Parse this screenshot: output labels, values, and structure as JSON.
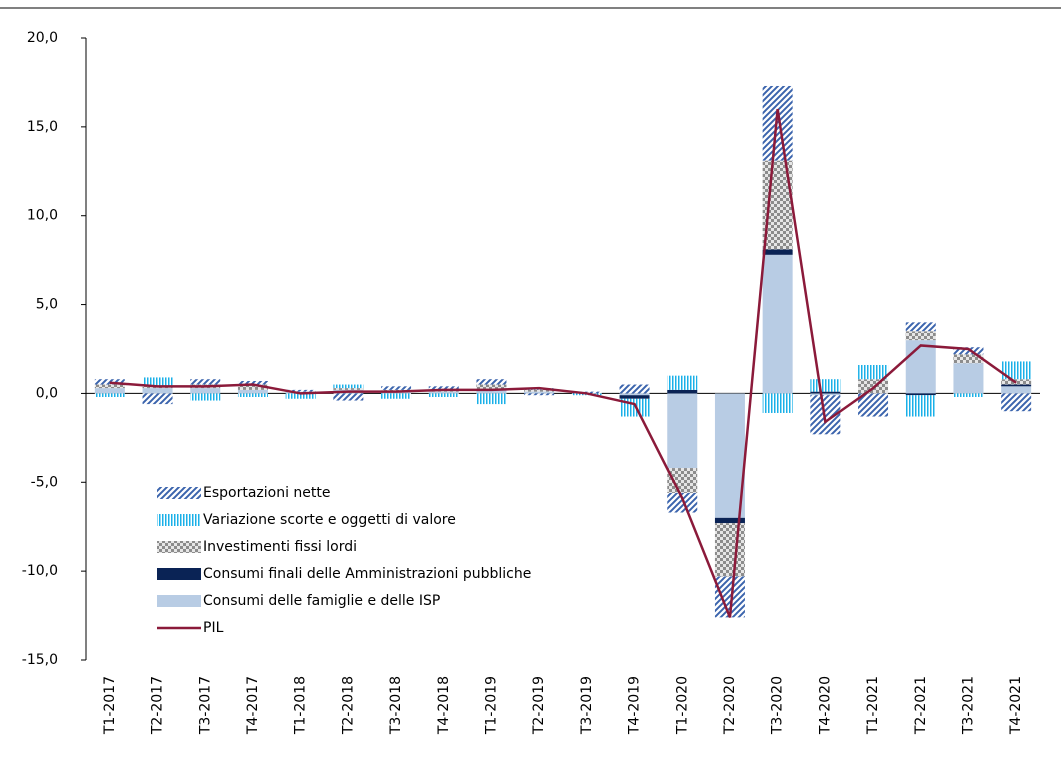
{
  "chart_data": {
    "type": "bar",
    "categories": [
      "T1-2017",
      "T2-2017",
      "T3-2017",
      "T4-2017",
      "T1-2018",
      "T2-2018",
      "T3-2018",
      "T4-2018",
      "T1-2019",
      "T2-2019",
      "T3-2019",
      "T4-2019",
      "T1-2020",
      "T2-2020",
      "T3-2020",
      "T4-2020",
      "T1-2021",
      "T2-2021",
      "T3-2021",
      "T4-2021"
    ],
    "series": [
      {
        "name": "Esportazioni nette",
        "color": "#3b64ad",
        "pattern": "diagonal",
        "values": [
          0.3,
          -0.6,
          0.3,
          0.2,
          0.1,
          -0.4,
          0.2,
          0.2,
          0.3,
          -0.1,
          0.1,
          0.5,
          -1.1,
          -2.3,
          4.2,
          -2.2,
          -1.3,
          0.5,
          0.4,
          -1.0
        ]
      },
      {
        "name": "Variazione scorte e oggetti di valore",
        "color": "#1ab0e8",
        "pattern": "vertical",
        "values": [
          -0.2,
          0.5,
          -0.4,
          -0.2,
          -0.3,
          0.2,
          -0.3,
          -0.2,
          -0.6,
          0.1,
          -0.1,
          -1.0,
          0.8,
          0.0,
          -1.1,
          0.7,
          0.8,
          -1.2,
          -0.2,
          1.0
        ]
      },
      {
        "name": "Investimenti fissi lordi",
        "color": "#8c8c8c",
        "pattern": "checker",
        "values": [
          0.2,
          0.1,
          0.2,
          0.3,
          0.0,
          0.1,
          0.1,
          0.1,
          0.3,
          0.1,
          0.0,
          0.0,
          -1.4,
          -3.0,
          5.0,
          0.0,
          0.8,
          0.5,
          0.5,
          0.3
        ]
      },
      {
        "name": "Consumi finali delle Amministrazioni pubbliche",
        "color": "#0a2355",
        "pattern": "solid",
        "values": [
          0.0,
          0.0,
          0.0,
          0.0,
          0.0,
          0.0,
          0.0,
          0.0,
          0.0,
          0.0,
          0.0,
          -0.2,
          0.2,
          -0.3,
          0.3,
          0.1,
          0.0,
          -0.1,
          0.0,
          0.1
        ]
      },
      {
        "name": "Consumi delle famiglie e delle ISP",
        "color": "#b8cce4",
        "pattern": "solid",
        "values": [
          0.3,
          0.3,
          0.3,
          0.2,
          0.1,
          0.2,
          0.1,
          0.1,
          0.2,
          0.1,
          0.0,
          -0.1,
          -4.2,
          -7.0,
          7.8,
          -0.1,
          0.0,
          3.0,
          1.7,
          0.4
        ]
      },
      {
        "name": "PIL",
        "color": "#8b1a3a",
        "type": "line",
        "values": [
          0.6,
          0.4,
          0.4,
          0.5,
          0.0,
          0.1,
          0.1,
          0.2,
          0.2,
          0.3,
          0.0,
          -0.6,
          -5.9,
          -12.6,
          16.0,
          -1.6,
          0.3,
          2.7,
          2.5,
          0.6
        ]
      }
    ],
    "ylim": [
      -15,
      20
    ],
    "yticks": [
      {
        "value": -15,
        "label": "-15,0"
      },
      {
        "value": -10,
        "label": "-10,0"
      },
      {
        "value": -5,
        "label": "-5,0"
      },
      {
        "value": 0,
        "label": "0,0"
      },
      {
        "value": 5,
        "label": "5,0"
      },
      {
        "value": 10,
        "label": "10,0"
      },
      {
        "value": 15,
        "label": "15,0"
      },
      {
        "value": 20,
        "label": "20,0"
      }
    ],
    "grid": false,
    "legend": "lower-left"
  }
}
